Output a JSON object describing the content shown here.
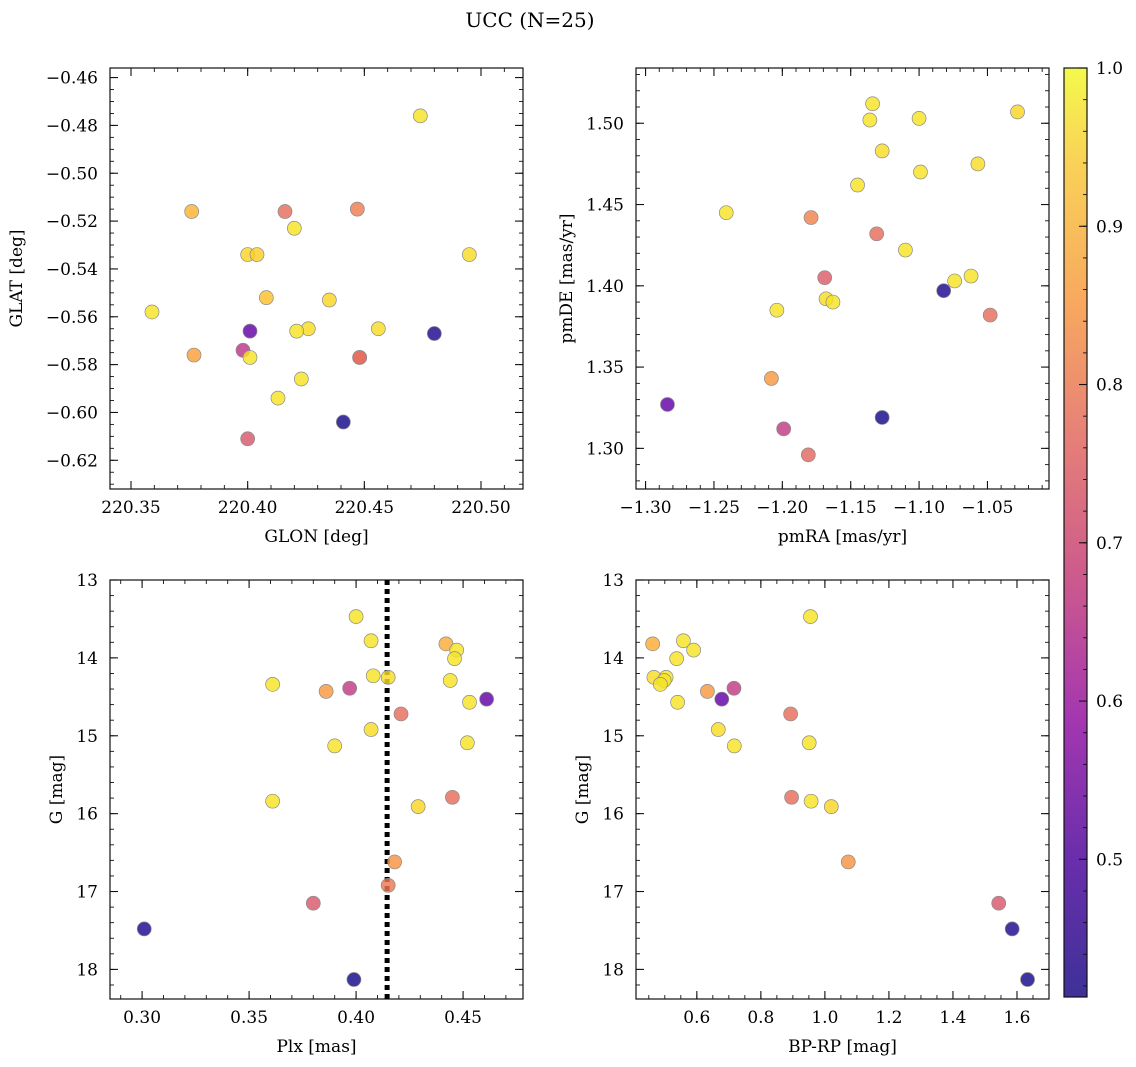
{
  "suptitle": "UCC (N=25)",
  "colorbar": {
    "min": 0.413,
    "max": 1.0,
    "ticks": [
      0.5,
      0.6,
      0.7,
      0.8,
      0.9,
      1.0
    ],
    "tick_labels": [
      "0.5",
      "0.6",
      "0.7",
      "0.8",
      "0.9",
      "1.0"
    ],
    "colormap": "plasma"
  },
  "chart_data": [
    {
      "type": "scatter",
      "xlabel": "GLON [deg]",
      "ylabel": "GLAT [deg]",
      "xlim": [
        220.341,
        220.518
      ],
      "ylim": [
        -0.632,
        -0.456
      ],
      "xticks": [
        220.35,
        220.4,
        220.45,
        220.5
      ],
      "xtick_labels": [
        "220.35",
        "220.40",
        "220.45",
        "220.50"
      ],
      "yticks": [
        -0.62,
        -0.6,
        -0.58,
        -0.56,
        -0.54,
        -0.52,
        -0.5,
        -0.48,
        -0.46
      ],
      "ytick_labels": [
        "−0.62",
        "−0.60",
        "−0.58",
        "−0.56",
        "−0.54",
        "−0.52",
        "−0.50",
        "−0.48",
        "−0.46"
      ],
      "x_minor_step": 0.01,
      "y_minor_step": 0.005,
      "points": [
        {
          "x": 220.474,
          "y": -0.476,
          "c": 0.97
        },
        {
          "x": 220.376,
          "y": -0.516,
          "c": 0.9
        },
        {
          "x": 220.416,
          "y": -0.516,
          "c": 0.78
        },
        {
          "x": 220.447,
          "y": -0.515,
          "c": 0.81
        },
        {
          "x": 220.42,
          "y": -0.523,
          "c": 0.97
        },
        {
          "x": 220.4,
          "y": -0.534,
          "c": 0.95
        },
        {
          "x": 220.404,
          "y": -0.534,
          "c": 0.94
        },
        {
          "x": 220.495,
          "y": -0.534,
          "c": 0.96
        },
        {
          "x": 220.408,
          "y": -0.552,
          "c": 0.92
        },
        {
          "x": 220.435,
          "y": -0.553,
          "c": 0.95
        },
        {
          "x": 220.359,
          "y": -0.558,
          "c": 0.97
        },
        {
          "x": 220.426,
          "y": -0.565,
          "c": 0.96
        },
        {
          "x": 220.456,
          "y": -0.565,
          "c": 0.96
        },
        {
          "x": 220.421,
          "y": -0.566,
          "c": 0.97
        },
        {
          "x": 220.401,
          "y": -0.566,
          "c": 0.52
        },
        {
          "x": 220.48,
          "y": -0.567,
          "c": 0.43
        },
        {
          "x": 220.398,
          "y": -0.574,
          "c": 0.67
        },
        {
          "x": 220.377,
          "y": -0.576,
          "c": 0.87
        },
        {
          "x": 220.401,
          "y": -0.577,
          "c": 0.97
        },
        {
          "x": 220.448,
          "y": -0.577,
          "c": 0.76
        },
        {
          "x": 220.448,
          "y": -0.577,
          "c": 0.78
        },
        {
          "x": 220.423,
          "y": -0.586,
          "c": 0.97
        },
        {
          "x": 220.413,
          "y": -0.594,
          "c": 0.97
        },
        {
          "x": 220.441,
          "y": -0.604,
          "c": 0.42
        },
        {
          "x": 220.4,
          "y": -0.611,
          "c": 0.74
        }
      ]
    },
    {
      "type": "scatter",
      "xlabel": "pmRA [mas/yr]",
      "ylabel": "pmDE [mas/yr]",
      "xlim": [
        -1.307,
        -1.005
      ],
      "ylim": [
        1.275,
        1.534
      ],
      "xticks": [
        -1.3,
        -1.25,
        -1.2,
        -1.15,
        -1.1,
        -1.05
      ],
      "xtick_labels": [
        "−1.30",
        "−1.25",
        "−1.20",
        "−1.15",
        "−1.10",
        "−1.05"
      ],
      "yticks": [
        1.3,
        1.35,
        1.4,
        1.45,
        1.5
      ],
      "ytick_labels": [
        "1.30",
        "1.35",
        "1.40",
        "1.45",
        "1.50"
      ],
      "x_minor_step": 0.01,
      "y_minor_step": 0.01,
      "points": [
        {
          "x": -1.134,
          "y": 1.512,
          "c": 0.97
        },
        {
          "x": -1.028,
          "y": 1.507,
          "c": 0.95
        },
        {
          "x": -1.136,
          "y": 1.502,
          "c": 0.97
        },
        {
          "x": -1.1,
          "y": 1.503,
          "c": 0.97
        },
        {
          "x": -1.127,
          "y": 1.483,
          "c": 0.96
        },
        {
          "x": -1.057,
          "y": 1.475,
          "c": 0.96
        },
        {
          "x": -1.099,
          "y": 1.47,
          "c": 0.97
        },
        {
          "x": -1.145,
          "y": 1.462,
          "c": 0.97
        },
        {
          "x": -1.241,
          "y": 1.445,
          "c": 0.97
        },
        {
          "x": -1.179,
          "y": 1.442,
          "c": 0.82
        },
        {
          "x": -1.131,
          "y": 1.432,
          "c": 0.78
        },
        {
          "x": -1.11,
          "y": 1.422,
          "c": 0.97
        },
        {
          "x": -1.062,
          "y": 1.406,
          "c": 0.97
        },
        {
          "x": -1.169,
          "y": 1.405,
          "c": 0.75
        },
        {
          "x": -1.074,
          "y": 1.403,
          "c": 0.97
        },
        {
          "x": -1.082,
          "y": 1.397,
          "c": 0.43
        },
        {
          "x": -1.168,
          "y": 1.392,
          "c": 0.96
        },
        {
          "x": -1.163,
          "y": 1.39,
          "c": 0.97
        },
        {
          "x": -1.204,
          "y": 1.385,
          "c": 0.97
        },
        {
          "x": -1.048,
          "y": 1.382,
          "c": 0.78
        },
        {
          "x": -1.208,
          "y": 1.343,
          "c": 0.86
        },
        {
          "x": -1.284,
          "y": 1.327,
          "c": 0.52
        },
        {
          "x": -1.127,
          "y": 1.319,
          "c": 0.42
        },
        {
          "x": -1.199,
          "y": 1.312,
          "c": 0.68
        },
        {
          "x": -1.181,
          "y": 1.296,
          "c": 0.77
        }
      ]
    },
    {
      "type": "scatter",
      "xlabel": "Plx [mas]",
      "ylabel": "G [mag]",
      "xlim": [
        0.285,
        0.478
      ],
      "ylim": [
        18.38,
        13.0
      ],
      "y_inverted": true,
      "xticks": [
        0.3,
        0.35,
        0.4,
        0.45
      ],
      "xtick_labels": [
        "0.30",
        "0.35",
        "0.40",
        "0.45"
      ],
      "yticks": [
        13,
        14,
        15,
        16,
        17,
        18
      ],
      "ytick_labels": [
        "13",
        "14",
        "15",
        "16",
        "17",
        "18"
      ],
      "x_minor_step": 0.01,
      "y_minor_step": 0.2,
      "vline": 0.4145,
      "points": [
        {
          "x": 0.4,
          "y": 13.47,
          "c": 0.97
        },
        {
          "x": 0.407,
          "y": 13.78,
          "c": 0.97
        },
        {
          "x": 0.442,
          "y": 13.82,
          "c": 0.89
        },
        {
          "x": 0.447,
          "y": 13.9,
          "c": 0.97
        },
        {
          "x": 0.446,
          "y": 14.01,
          "c": 0.97
        },
        {
          "x": 0.408,
          "y": 14.23,
          "c": 0.97
        },
        {
          "x": 0.415,
          "y": 14.25,
          "c": 0.96
        },
        {
          "x": 0.444,
          "y": 14.29,
          "c": 0.97
        },
        {
          "x": 0.361,
          "y": 14.34,
          "c": 0.97
        },
        {
          "x": 0.397,
          "y": 14.39,
          "c": 0.68
        },
        {
          "x": 0.386,
          "y": 14.43,
          "c": 0.86
        },
        {
          "x": 0.461,
          "y": 14.53,
          "c": 0.52
        },
        {
          "x": 0.453,
          "y": 14.57,
          "c": 0.97
        },
        {
          "x": 0.421,
          "y": 14.72,
          "c": 0.78
        },
        {
          "x": 0.407,
          "y": 14.92,
          "c": 0.96
        },
        {
          "x": 0.452,
          "y": 15.09,
          "c": 0.97
        },
        {
          "x": 0.39,
          "y": 15.13,
          "c": 0.97
        },
        {
          "x": 0.445,
          "y": 15.79,
          "c": 0.78
        },
        {
          "x": 0.361,
          "y": 15.84,
          "c": 0.97
        },
        {
          "x": 0.429,
          "y": 15.91,
          "c": 0.95
        },
        {
          "x": 0.418,
          "y": 16.62,
          "c": 0.85
        },
        {
          "x": 0.415,
          "y": 16.92,
          "c": 0.8
        },
        {
          "x": 0.38,
          "y": 17.15,
          "c": 0.74
        },
        {
          "x": 0.301,
          "y": 17.48,
          "c": 0.43
        },
        {
          "x": 0.399,
          "y": 18.13,
          "c": 0.42
        }
      ]
    },
    {
      "type": "scatter",
      "xlabel": "BP-RP [mag]",
      "ylabel": "G [mag]",
      "xlim": [
        0.41,
        1.7
      ],
      "ylim": [
        18.38,
        13.0
      ],
      "y_inverted": true,
      "xticks": [
        0.6,
        0.8,
        1.0,
        1.2,
        1.4,
        1.6
      ],
      "xtick_labels": [
        "0.6",
        "0.8",
        "1.0",
        "1.2",
        "1.4",
        "1.6"
      ],
      "yticks": [
        13,
        14,
        15,
        16,
        17,
        18
      ],
      "ytick_labels": [
        "13",
        "14",
        "15",
        "16",
        "17",
        "18"
      ],
      "x_minor_step": 0.05,
      "y_minor_step": 0.2,
      "points": [
        {
          "x": 0.955,
          "y": 13.47,
          "c": 0.97
        },
        {
          "x": 0.558,
          "y": 13.78,
          "c": 0.97
        },
        {
          "x": 0.462,
          "y": 13.82,
          "c": 0.89
        },
        {
          "x": 0.59,
          "y": 13.9,
          "c": 0.97
        },
        {
          "x": 0.537,
          "y": 14.01,
          "c": 0.97
        },
        {
          "x": 0.466,
          "y": 14.25,
          "c": 0.96
        },
        {
          "x": 0.504,
          "y": 14.25,
          "c": 0.97
        },
        {
          "x": 0.498,
          "y": 14.29,
          "c": 0.97
        },
        {
          "x": 0.486,
          "y": 14.34,
          "c": 0.97
        },
        {
          "x": 0.716,
          "y": 14.39,
          "c": 0.68
        },
        {
          "x": 0.633,
          "y": 14.43,
          "c": 0.86
        },
        {
          "x": 0.678,
          "y": 14.53,
          "c": 0.52
        },
        {
          "x": 0.54,
          "y": 14.57,
          "c": 0.97
        },
        {
          "x": 0.893,
          "y": 14.72,
          "c": 0.78
        },
        {
          "x": 0.667,
          "y": 14.92,
          "c": 0.96
        },
        {
          "x": 0.951,
          "y": 15.09,
          "c": 0.97
        },
        {
          "x": 0.717,
          "y": 15.13,
          "c": 0.97
        },
        {
          "x": 0.896,
          "y": 15.79,
          "c": 0.78
        },
        {
          "x": 0.957,
          "y": 15.84,
          "c": 0.97
        },
        {
          "x": 1.02,
          "y": 15.91,
          "c": 0.95
        },
        {
          "x": 1.073,
          "y": 16.62,
          "c": 0.85
        },
        {
          "x": 1.543,
          "y": 17.15,
          "c": 0.74
        },
        {
          "x": 1.585,
          "y": 17.48,
          "c": 0.43
        },
        {
          "x": 1.633,
          "y": 18.13,
          "c": 0.42
        }
      ]
    }
  ]
}
